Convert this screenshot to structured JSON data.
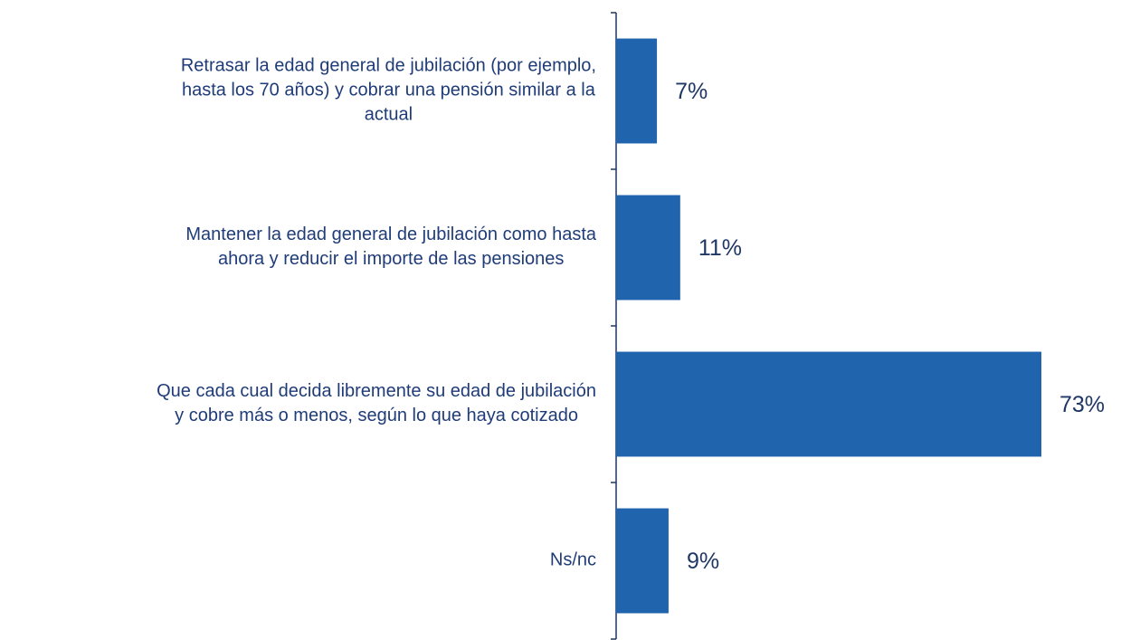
{
  "chart_data": {
    "type": "barh",
    "categories": [
      "Retrasar la edad general de jubilación (por ejemplo,\nhasta los 70 años) y cobrar una pensión similar a la\nactual",
      "Mantener la edad general  de jubilación como hasta\nahora y reducir el importe de las pensiones",
      "Que cada cual decida libremente su edad de jubilación\ny cobre más o menos, según lo que haya cotizado",
      "Ns/nc"
    ],
    "values": [
      7,
      11,
      73,
      9
    ],
    "value_labels": [
      "7%",
      "11%",
      "73%",
      "9%"
    ],
    "color": "#2064ae"
  }
}
